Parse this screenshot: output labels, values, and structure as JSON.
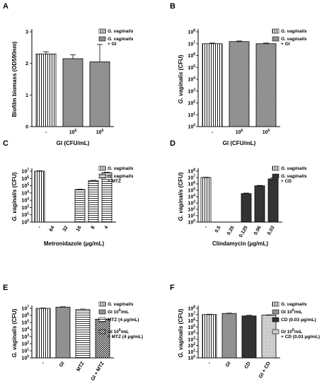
{
  "chart_data": [
    {
      "panel": "A",
      "type": "bar",
      "categories": [
        "-",
        "10^6",
        "10^5"
      ],
      "values": [
        2.3,
        2.15,
        2.05
      ],
      "errors": [
        0.07,
        0.12,
        0.55
      ],
      "patterns": [
        "vstripe",
        "check",
        "check"
      ],
      "ylabel": "Biofilm biomass (OD590nm)",
      "xlabel": "GI (CFU/mL)",
      "yscale": "linear",
      "ylim": [
        0,
        3
      ],
      "yticks": [
        "0",
        "1",
        "2",
        "3"
      ],
      "legend": [
        {
          "label": "G. vaginalis",
          "pattern": "vstripe",
          "italic": true
        },
        {
          "label": "G. vaginalis + GI",
          "pattern": "check",
          "italic": true
        }
      ]
    },
    {
      "panel": "B",
      "type": "bar",
      "categories": [
        "-",
        "10^6",
        "10^5"
      ],
      "values": [
        10000000.0,
        15000000.0,
        10000000.0
      ],
      "errors": [
        0.05,
        0.05,
        0.05
      ],
      "patterns": [
        "vstripe",
        "check",
        "check"
      ],
      "ylabel": "G. vaginalis (CFU)",
      "xlabel": "GI (CFU/mL)",
      "yscale": "log",
      "ylim": [
        0,
        8
      ],
      "legend": [
        {
          "label": "G. vaginalis",
          "pattern": "vstripe",
          "italic": true
        },
        {
          "label": "G. vaginalis + GI",
          "pattern": "check",
          "italic": true
        }
      ]
    },
    {
      "panel": "C",
      "type": "bar",
      "categories": [
        "-",
        "64",
        "32",
        "16",
        "8",
        "4"
      ],
      "values": [
        10000000.0,
        0,
        0,
        30000.0,
        500000.0,
        6000000.0
      ],
      "errors": [
        0.05,
        0,
        0,
        0.04,
        0.04,
        0.06
      ],
      "patterns": [
        "vstripe",
        "none",
        "none",
        "hstripe",
        "hstripe",
        "hstripe"
      ],
      "ylabel": "G. vaginalis (CFU)",
      "xlabel": "Metronidazole (μg/mL)",
      "yscale": "log",
      "ylim": [
        0,
        7
      ],
      "legend": [
        {
          "label": "G. vaginalis",
          "pattern": "vstripe",
          "italic": true
        },
        {
          "label": "G. vaginalis + MTZ",
          "pattern": "hstripe",
          "italic": true
        }
      ]
    },
    {
      "panel": "D",
      "type": "bar",
      "categories": [
        "-",
        "0.5",
        "0.25",
        "0.125",
        "0.06",
        "0.03"
      ],
      "values": [
        10000000.0,
        0,
        0,
        30000.0,
        500000.0,
        6000000.0
      ],
      "errors": [
        0.05,
        0,
        0,
        0.08,
        0.06,
        0.15
      ],
      "patterns": [
        "vstripe",
        "none",
        "none",
        "dark",
        "dark",
        "dark"
      ],
      "ylabel": "G. vaginalis (CFU)",
      "xlabel": "Clindamycin (μg/mL)",
      "yscale": "log",
      "ylim": [
        0,
        8
      ],
      "legend": [
        {
          "label": "G. vaginalis",
          "pattern": "vstripe",
          "italic": true
        },
        {
          "label": "G. vaginalis + CD",
          "pattern": "dark",
          "italic": true
        }
      ]
    },
    {
      "panel": "E",
      "type": "bar",
      "categories": [
        "-",
        "GI",
        "MTZ",
        "GI + MTZ"
      ],
      "values": [
        10000000.0,
        15000000.0,
        7000000.0,
        300000.0
      ],
      "errors": [
        0.05,
        0.05,
        0.05,
        0.05
      ],
      "patterns": [
        "vstripe",
        "check",
        "hstripe",
        "bigcheck"
      ],
      "ylabel": "G. vaginalis (CFU)",
      "xlabel": "",
      "yscale": "log",
      "ylim": [
        0,
        7
      ],
      "legend": [
        {
          "label": "G. vaginalis",
          "pattern": "vstripe",
          "italic": true
        },
        {
          "label": "GI 10^6/mL",
          "pattern": "check",
          "italic": false
        },
        {
          "label": "MTZ (4 μg/mL)",
          "pattern": "hstripe",
          "italic": false
        },
        {
          "label": "GI 10^6/mL + MTZ (4 μg/mL)",
          "pattern": "bigcheck",
          "italic": false
        }
      ]
    },
    {
      "panel": "F",
      "type": "bar",
      "categories": [
        "-",
        "GI",
        "CD",
        "GI + CD"
      ],
      "values": [
        10000000.0,
        15000000.0,
        6000000.0,
        8000000.0
      ],
      "errors": [
        0.05,
        0.05,
        0.1,
        0.05
      ],
      "patterns": [
        "vstripe",
        "check",
        "dark",
        "fine"
      ],
      "ylabel": "G. vaginalis (CFU)",
      "xlabel": "",
      "yscale": "log",
      "ylim": [
        0,
        8
      ],
      "legend": [
        {
          "label": "G. vaginalis",
          "pattern": "vstripe",
          "italic": true
        },
        {
          "label": "GI 10^6/mL",
          "pattern": "check",
          "italic": false
        },
        {
          "label": "CD (0.03 μg/mL)",
          "pattern": "dark",
          "italic": false
        },
        {
          "label": "GI 10^6/mL + CD (0.03 μg/mL)",
          "pattern": "fine",
          "italic": false
        }
      ]
    }
  ]
}
